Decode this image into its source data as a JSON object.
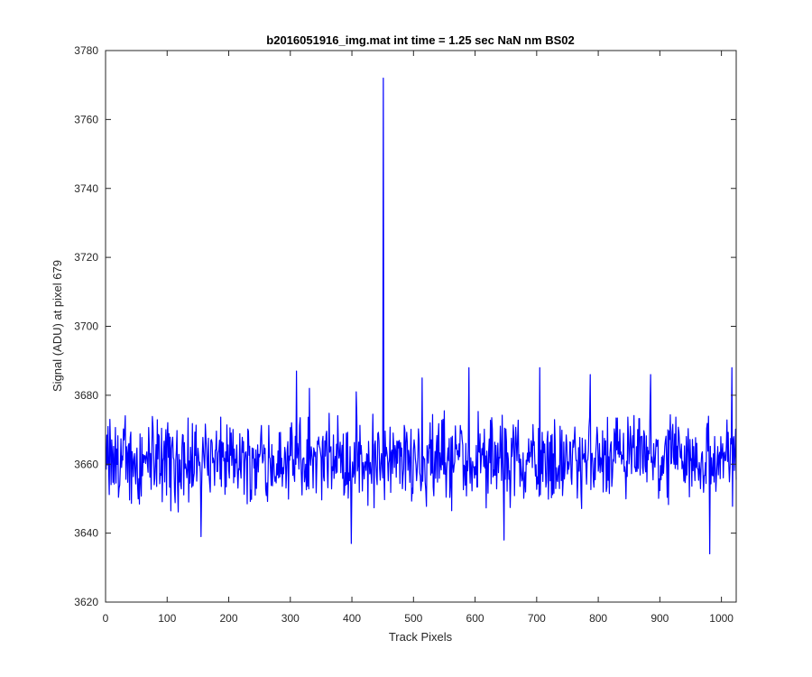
{
  "chart_data": {
    "type": "line",
    "title": "b2016051916_img.mat int time = 1.25 sec  NaN nm BS02",
    "xlabel": "Track Pixels",
    "ylabel": "Signal (ADU) at pixel 679",
    "xlim": [
      0,
      1024
    ],
    "ylim": [
      3620,
      3780
    ],
    "xticks": [
      0,
      100,
      200,
      300,
      400,
      500,
      600,
      700,
      800,
      900,
      1000
    ],
    "yticks": [
      3620,
      3640,
      3660,
      3680,
      3700,
      3720,
      3740,
      3760,
      3780
    ],
    "grid": false,
    "legend": "none",
    "series": [
      {
        "color": "#0000ff",
        "baseline_mean": 3661,
        "x_start": 1,
        "x_end": 1024,
        "features": [
          {
            "x": 451,
            "y": 3772
          },
          {
            "x": 399,
            "y": 3637
          },
          {
            "x": 981,
            "y": 3634
          },
          {
            "x": 155,
            "y": 3639
          },
          {
            "x": 647,
            "y": 3638
          },
          {
            "x": 1017,
            "y": 3688
          },
          {
            "x": 310,
            "y": 3687
          },
          {
            "x": 705,
            "y": 3688
          },
          {
            "x": 590,
            "y": 3688
          },
          {
            "x": 787,
            "y": 3686
          },
          {
            "x": 885,
            "y": 3686
          },
          {
            "x": 514,
            "y": 3685
          },
          {
            "x": 331,
            "y": 3682
          },
          {
            "x": 407,
            "y": 3681
          }
        ]
      }
    ]
  }
}
